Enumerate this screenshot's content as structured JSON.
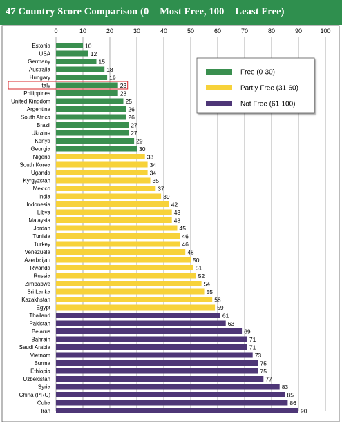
{
  "title": "47 Country Score Comparison (0 = Most Free, 100 = Least Free)",
  "colors": {
    "title_bar": "#2f8f4e",
    "free": "#3a8f4f",
    "partly_free": "#f7d23a",
    "not_free": "#4e3677",
    "highlight_box": "#d9262a"
  },
  "chart_data": {
    "type": "bar",
    "orientation": "horizontal",
    "title": "47 Country Score Comparison (0 = Most Free, 100 = Least Free)",
    "xlim": [
      0,
      100
    ],
    "xticks": [
      0,
      10,
      20,
      30,
      40,
      50,
      60,
      70,
      80,
      90,
      100
    ],
    "grid": true,
    "legend_position": "top-right",
    "highlighted_category": "Italy",
    "legend": [
      {
        "label": "Free (0-30)",
        "color": "#3a8f4f"
      },
      {
        "label": "Partly Free (31-60)",
        "color": "#f7d23a"
      },
      {
        "label": "Not Free (61-100)",
        "color": "#4e3677"
      }
    ],
    "categories": [
      "Estonia",
      "USA",
      "Germany",
      "Australia",
      "Hungary",
      "Italy",
      "Philippines",
      "United Kingdom",
      "Argentina",
      "South Africa",
      "Brazil",
      "Ukraine",
      "Kenya",
      "Georgia",
      "Nigeria",
      "South Korea",
      "Uganda",
      "Kyrgyzstan",
      "Mexico",
      "India",
      "Indonesia",
      "Libya",
      "Malaysia",
      "Jordan",
      "Tunisia",
      "Turkey",
      "Venezuela",
      "Azerbaijan",
      "Rwanda",
      "Russia",
      "Zimbabwe",
      "Sri Lanka",
      "Kazakhstan",
      "Egypt",
      "Thailand",
      "Pakistan",
      "Belarus",
      "Bahrain",
      "Saudi Arabia",
      "Vietnam",
      "Burma",
      "Ethiopia",
      "Uzbekistan",
      "Syria",
      "China (PRC)",
      "Cuba",
      "Iran"
    ],
    "values": [
      10,
      12,
      15,
      18,
      19,
      23,
      23,
      25,
      26,
      26,
      27,
      27,
      29,
      30,
      33,
      34,
      34,
      35,
      37,
      39,
      42,
      43,
      43,
      45,
      46,
      46,
      48,
      50,
      51,
      52,
      54,
      55,
      58,
      59,
      61,
      63,
      69,
      71,
      71,
      73,
      75,
      75,
      77,
      83,
      85,
      86,
      90
    ]
  }
}
